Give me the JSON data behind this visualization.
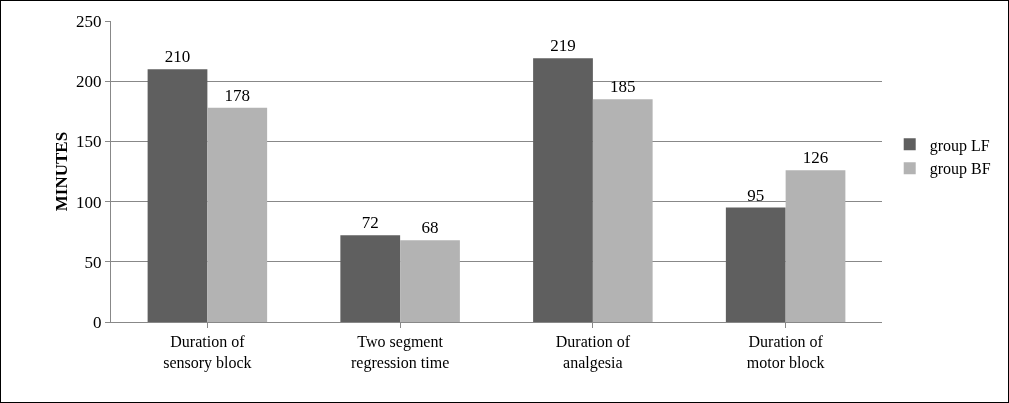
{
  "chart_data": {
    "type": "bar",
    "ylabel": "MINUTES",
    "categories": [
      "Duration of sensory block",
      "Two segment regression time",
      "Duration of analgesia",
      "Duration of motor block"
    ],
    "series": [
      {
        "name": "group LF",
        "color": "#5f5f5f",
        "values": [
          210,
          72,
          219,
          95
        ]
      },
      {
        "name": "group BF",
        "color": "#b3b3b3",
        "values": [
          178,
          68,
          185,
          126
        ]
      }
    ],
    "ylim": [
      0,
      250
    ],
    "yticks": [
      0,
      50,
      100,
      150,
      200,
      250
    ],
    "grid": "y",
    "legend": "right",
    "data_labels": true
  }
}
